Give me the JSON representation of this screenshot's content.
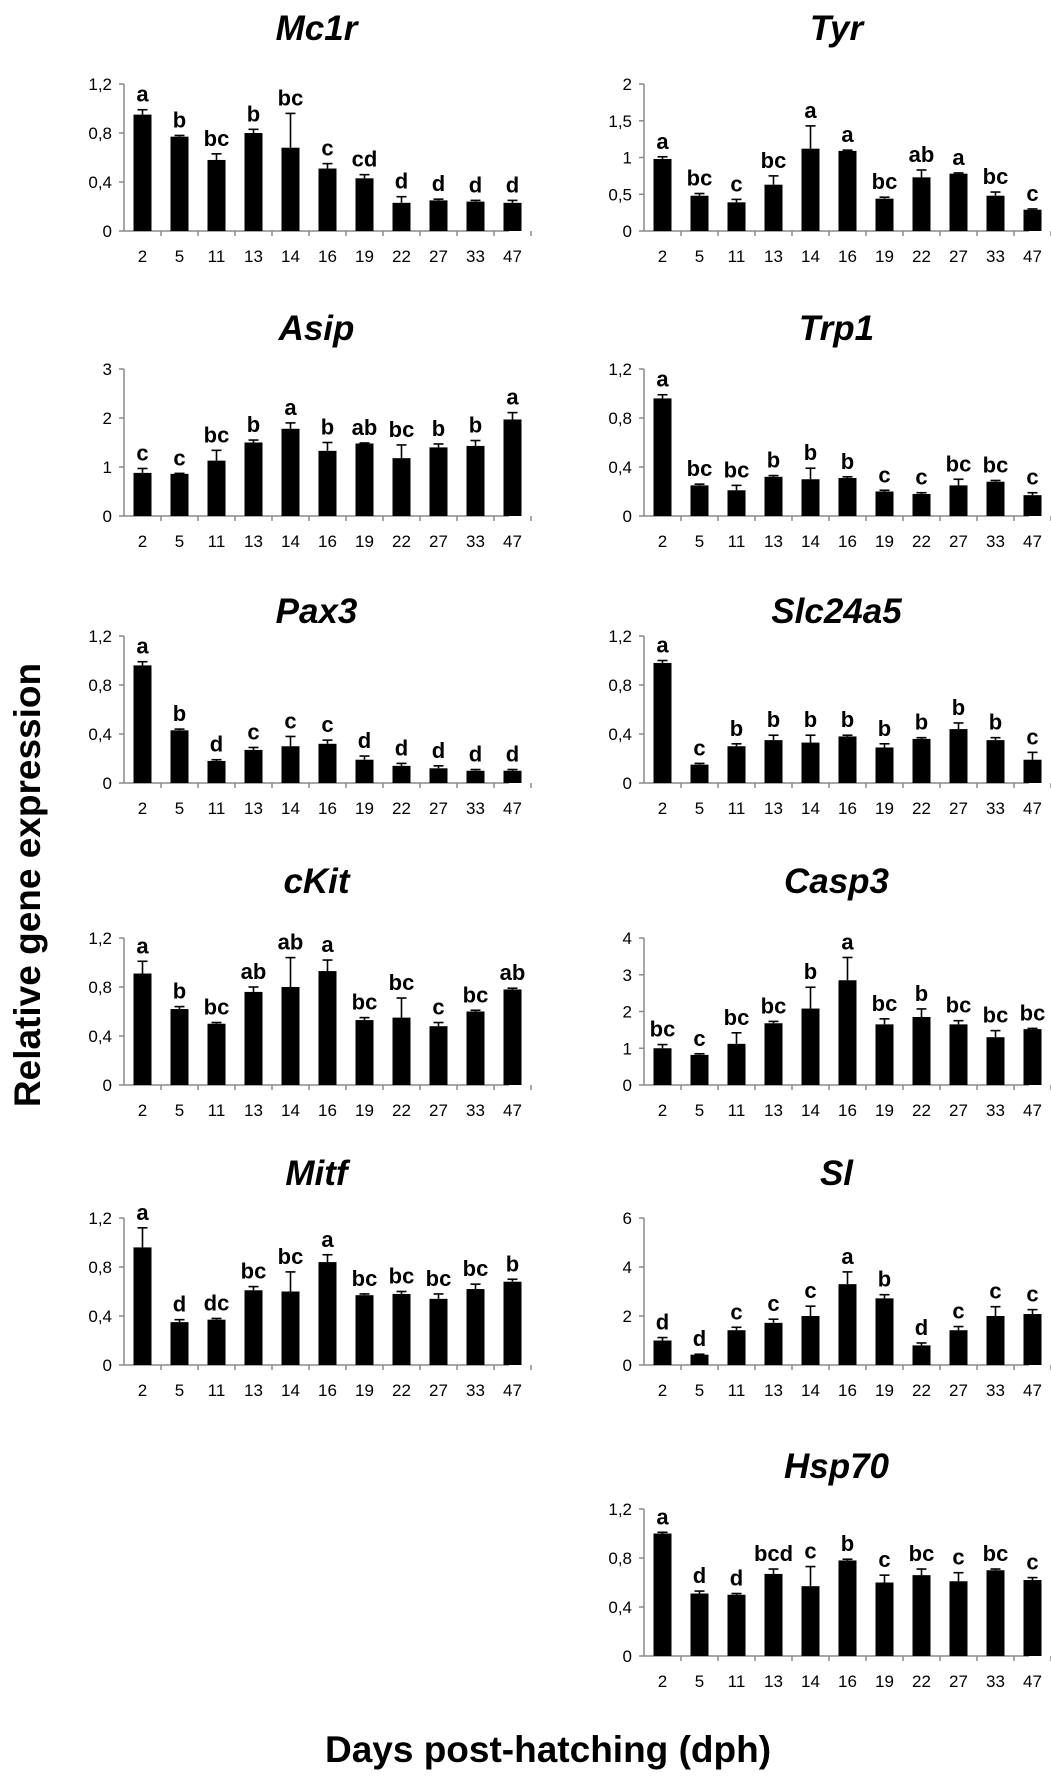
{
  "figure": {
    "ylabel": "Relative gene expression",
    "xlabel": "Days post-hatching (dph)"
  },
  "chart_data": [
    {
      "type": "bar",
      "title": "Mc1r",
      "categories": [
        "2",
        "5",
        "11",
        "13",
        "14",
        "16",
        "19",
        "22",
        "27",
        "33",
        "47"
      ],
      "values": [
        0.95,
        0.77,
        0.58,
        0.8,
        0.68,
        0.51,
        0.43,
        0.23,
        0.25,
        0.24,
        0.23
      ],
      "errors": [
        0.04,
        0.01,
        0.05,
        0.03,
        0.28,
        0.04,
        0.03,
        0.05,
        0.01,
        0.01,
        0.02
      ],
      "labels": [
        "a",
        "b",
        "bc",
        "b",
        "bc",
        "c",
        "cd",
        "d",
        "d",
        "d",
        "d"
      ],
      "ylim": [
        0,
        1.2
      ],
      "yticks": [
        "0",
        "0,4",
        "0,8",
        "1,2"
      ]
    },
    {
      "type": "bar",
      "title": "Tyr",
      "categories": [
        "2",
        "5",
        "11",
        "13",
        "14",
        "16",
        "19",
        "22",
        "27",
        "33",
        "47"
      ],
      "values": [
        0.98,
        0.48,
        0.39,
        0.63,
        1.12,
        1.09,
        0.44,
        0.73,
        0.78,
        0.48,
        0.29
      ],
      "errors": [
        0.03,
        0.03,
        0.04,
        0.12,
        0.31,
        0.01,
        0.02,
        0.1,
        0.01,
        0.05,
        0.01
      ],
      "labels": [
        "a",
        "bc",
        "c",
        "bc",
        "a",
        "a",
        "bc",
        "ab",
        "a",
        "bc",
        "c"
      ],
      "ylim": [
        0,
        2
      ],
      "yticks": [
        "0",
        "0,5",
        "1",
        "1,5",
        "2"
      ]
    },
    {
      "type": "bar",
      "title": "Asip",
      "categories": [
        "2",
        "5",
        "11",
        "13",
        "14",
        "16",
        "19",
        "22",
        "27",
        "33",
        "47"
      ],
      "values": [
        0.88,
        0.86,
        1.13,
        1.5,
        1.78,
        1.33,
        1.48,
        1.18,
        1.4,
        1.43,
        1.97
      ],
      "errors": [
        0.09,
        0.01,
        0.21,
        0.05,
        0.12,
        0.17,
        0.01,
        0.27,
        0.07,
        0.11,
        0.14
      ],
      "labels": [
        "c",
        "c",
        "bc",
        "b",
        "a",
        "b",
        "ab",
        "bc",
        "b",
        "b",
        "a"
      ],
      "ylim": [
        0,
        3
      ],
      "yticks": [
        "0",
        "1",
        "2",
        "3"
      ]
    },
    {
      "type": "bar",
      "title": "Trp1",
      "categories": [
        "2",
        "5",
        "11",
        "13",
        "14",
        "16",
        "19",
        "22",
        "27",
        "33",
        "47"
      ],
      "values": [
        0.96,
        0.25,
        0.21,
        0.32,
        0.3,
        0.31,
        0.2,
        0.18,
        0.25,
        0.28,
        0.17
      ],
      "errors": [
        0.03,
        0.01,
        0.04,
        0.01,
        0.09,
        0.01,
        0.01,
        0.01,
        0.05,
        0.01,
        0.02
      ],
      "labels": [
        "a",
        "bc",
        "bc",
        "b",
        "b",
        "b",
        "c",
        "c",
        "bc",
        "bc",
        "c"
      ],
      "ylim": [
        0,
        1.2
      ],
      "yticks": [
        "0",
        "0,4",
        "0,8",
        "1,2"
      ]
    },
    {
      "type": "bar",
      "title": "Pax3",
      "categories": [
        "2",
        "5",
        "11",
        "13",
        "14",
        "16",
        "19",
        "22",
        "27",
        "33",
        "47"
      ],
      "values": [
        0.96,
        0.43,
        0.18,
        0.27,
        0.3,
        0.32,
        0.19,
        0.14,
        0.12,
        0.1,
        0.1
      ],
      "errors": [
        0.03,
        0.01,
        0.01,
        0.02,
        0.08,
        0.03,
        0.03,
        0.02,
        0.02,
        0.01,
        0.01
      ],
      "labels": [
        "a",
        "b",
        "d",
        "c",
        "c",
        "c",
        "d",
        "d",
        "d",
        "d",
        "d"
      ],
      "ylim": [
        0,
        1.2
      ],
      "yticks": [
        "0",
        "0,4",
        "0,8",
        "1,2"
      ]
    },
    {
      "type": "bar",
      "title": "Slc24a5",
      "categories": [
        "2",
        "5",
        "11",
        "13",
        "14",
        "16",
        "19",
        "22",
        "27",
        "33",
        "47"
      ],
      "values": [
        0.98,
        0.15,
        0.3,
        0.35,
        0.33,
        0.38,
        0.29,
        0.36,
        0.44,
        0.35,
        0.19
      ],
      "errors": [
        0.02,
        0.01,
        0.02,
        0.04,
        0.06,
        0.01,
        0.03,
        0.01,
        0.05,
        0.02,
        0.06
      ],
      "labels": [
        "a",
        "c",
        "b",
        "b",
        "b",
        "b",
        "b",
        "b",
        "b",
        "b",
        "c"
      ],
      "ylim": [
        0,
        1.2
      ],
      "yticks": [
        "0",
        "0,4",
        "0,8",
        "1,2"
      ]
    },
    {
      "type": "bar",
      "title": "cKit",
      "categories": [
        "2",
        "5",
        "11",
        "13",
        "14",
        "16",
        "19",
        "22",
        "27",
        "33",
        "47"
      ],
      "values": [
        0.91,
        0.62,
        0.5,
        0.76,
        0.8,
        0.93,
        0.53,
        0.55,
        0.48,
        0.6,
        0.78
      ],
      "errors": [
        0.1,
        0.02,
        0.01,
        0.04,
        0.24,
        0.09,
        0.02,
        0.16,
        0.03,
        0.01,
        0.01
      ],
      "labels": [
        "a",
        "b",
        "bc",
        "ab",
        "ab",
        "a",
        "bc",
        "bc",
        "c",
        "bc",
        "ab"
      ],
      "ylim": [
        0,
        1.2
      ],
      "yticks": [
        "0",
        "0,4",
        "0,8",
        "1,2"
      ]
    },
    {
      "type": "bar",
      "title": "Casp3",
      "categories": [
        "2",
        "5",
        "11",
        "13",
        "14",
        "16",
        "19",
        "22",
        "27",
        "33",
        "47"
      ],
      "values": [
        1.0,
        0.82,
        1.12,
        1.68,
        2.08,
        2.85,
        1.65,
        1.85,
        1.65,
        1.3,
        1.52
      ],
      "errors": [
        0.1,
        0.03,
        0.3,
        0.05,
        0.58,
        0.62,
        0.15,
        0.22,
        0.1,
        0.18,
        0.02
      ],
      "labels": [
        "bc",
        "c",
        "bc",
        "bc",
        "b",
        "a",
        "bc",
        "b",
        "bc",
        "bc",
        "bc"
      ],
      "ylim": [
        0,
        4
      ],
      "yticks": [
        "0",
        "1",
        "2",
        "3",
        "4"
      ]
    },
    {
      "type": "bar",
      "title": "Mitf",
      "categories": [
        "2",
        "5",
        "11",
        "13",
        "14",
        "16",
        "19",
        "22",
        "27",
        "33",
        "47"
      ],
      "values": [
        0.96,
        0.35,
        0.37,
        0.61,
        0.6,
        0.84,
        0.57,
        0.58,
        0.54,
        0.62,
        0.68
      ],
      "errors": [
        0.16,
        0.02,
        0.01,
        0.03,
        0.16,
        0.06,
        0.01,
        0.02,
        0.04,
        0.04,
        0.02
      ],
      "labels": [
        "a",
        "d",
        "dc",
        "bc",
        "bc",
        "a",
        "bc",
        "bc",
        "bc",
        "bc",
        "b"
      ],
      "ylim": [
        0,
        1.2
      ],
      "yticks": [
        "0",
        "0,4",
        "0,8",
        "1,2"
      ]
    },
    {
      "type": "bar",
      "title": "Sl",
      "categories": [
        "2",
        "5",
        "11",
        "13",
        "14",
        "16",
        "19",
        "22",
        "27",
        "33",
        "47"
      ],
      "values": [
        1.0,
        0.42,
        1.42,
        1.72,
        2.0,
        3.3,
        2.72,
        0.8,
        1.42,
        2.0,
        2.08
      ],
      "errors": [
        0.12,
        0.02,
        0.12,
        0.15,
        0.4,
        0.5,
        0.15,
        0.1,
        0.15,
        0.38,
        0.18
      ],
      "labels": [
        "d",
        "d",
        "c",
        "c",
        "c",
        "a",
        "b",
        "d",
        "c",
        "c",
        "c"
      ],
      "ylim": [
        0,
        6
      ],
      "yticks": [
        "0",
        "2",
        "4",
        "6"
      ]
    },
    {
      "type": "bar",
      "title": "Hsp70",
      "categories": [
        "2",
        "5",
        "11",
        "13",
        "14",
        "16",
        "19",
        "22",
        "27",
        "33",
        "47"
      ],
      "values": [
        1.0,
        0.51,
        0.5,
        0.67,
        0.57,
        0.78,
        0.6,
        0.66,
        0.61,
        0.7,
        0.62
      ],
      "errors": [
        0.01,
        0.02,
        0.01,
        0.04,
        0.16,
        0.01,
        0.06,
        0.05,
        0.07,
        0.01,
        0.02
      ],
      "labels": [
        "a",
        "d",
        "d",
        "bcd",
        "c",
        "b",
        "c",
        "bc",
        "c",
        "bc",
        "c"
      ],
      "ylim": [
        0,
        1.2
      ],
      "yticks": [
        "0",
        "0,4",
        "0,8",
        "1,2"
      ]
    }
  ]
}
